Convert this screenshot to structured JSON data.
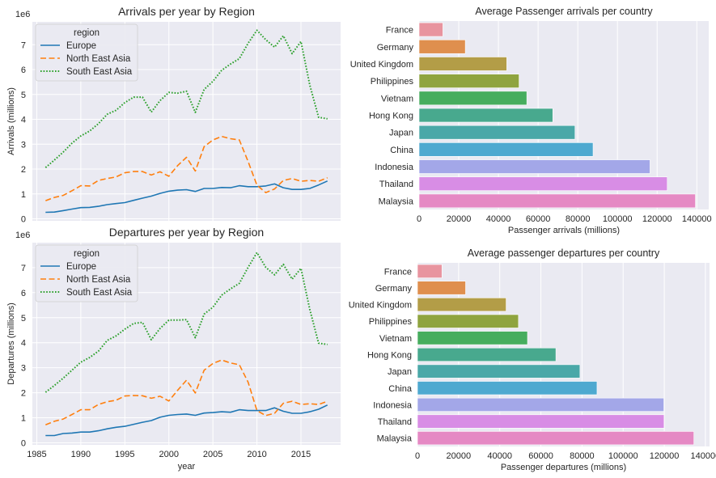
{
  "chart_data": [
    {
      "id": "arrivals-line",
      "type": "line",
      "title": "Arrivals per year by Region",
      "xlabel": "",
      "ylabel": "Arrivals (millions)",
      "offset_label": "1e6",
      "xlim": [
        1984.5,
        2019.5
      ],
      "ylim": [
        0,
        7.85
      ],
      "xticks": [
        1985,
        1990,
        1995,
        2000,
        2005,
        2010,
        2015
      ],
      "xtick_labels_visible": false,
      "yticks": [
        0,
        1,
        2,
        3,
        4,
        5,
        6,
        7
      ],
      "grid": true,
      "legend": {
        "title": "region",
        "placement": "top-left"
      },
      "x": [
        1986,
        1987,
        1988,
        1989,
        1990,
        1991,
        1992,
        1993,
        1994,
        1995,
        1996,
        1997,
        1998,
        1999,
        2000,
        2001,
        2002,
        2003,
        2004,
        2005,
        2006,
        2007,
        2008,
        2009,
        2010,
        2011,
        2012,
        2013,
        2014,
        2015,
        2016,
        2017,
        2018
      ],
      "series": [
        {
          "name": "Europe",
          "style": "solid",
          "color": "#1f77b4",
          "values": [
            0.26,
            0.27,
            0.33,
            0.39,
            0.45,
            0.46,
            0.5,
            0.57,
            0.61,
            0.65,
            0.74,
            0.83,
            0.91,
            1.02,
            1.11,
            1.15,
            1.17,
            1.1,
            1.22,
            1.22,
            1.26,
            1.25,
            1.33,
            1.29,
            1.29,
            1.32,
            1.4,
            1.25,
            1.18,
            1.18,
            1.22,
            1.36,
            1.52
          ]
        },
        {
          "name": "North East Asia",
          "style": "dashed",
          "color": "#ff7f0e",
          "values": [
            0.73,
            0.86,
            0.94,
            1.13,
            1.33,
            1.32,
            1.54,
            1.62,
            1.68,
            1.85,
            1.9,
            1.9,
            1.76,
            1.89,
            1.71,
            2.14,
            2.47,
            1.92,
            2.9,
            3.17,
            3.31,
            3.22,
            3.17,
            2.3,
            1.35,
            1.05,
            1.2,
            1.54,
            1.62,
            1.51,
            1.54,
            1.51,
            1.65
          ]
        },
        {
          "name": "South East Asia",
          "style": "dotted",
          "color": "#2ca02c",
          "values": [
            2.06,
            2.36,
            2.68,
            3.04,
            3.33,
            3.53,
            3.82,
            4.2,
            4.36,
            4.67,
            4.89,
            4.89,
            4.29,
            4.75,
            5.08,
            5.05,
            5.13,
            4.28,
            5.2,
            5.53,
            5.97,
            6.22,
            6.44,
            7.06,
            7.58,
            7.2,
            6.9,
            7.36,
            6.64,
            7.13,
            5.38,
            4.08,
            4.02
          ]
        }
      ]
    },
    {
      "id": "departures-line",
      "type": "line",
      "title": "Departures per year by Region",
      "xlabel": "year",
      "ylabel": "Departures (millions)",
      "offset_label": "1e6",
      "xlim": [
        1984.5,
        2019.5
      ],
      "ylim": [
        0,
        7.85
      ],
      "xticks": [
        1985,
        1990,
        1995,
        2000,
        2005,
        2010,
        2015
      ],
      "xtick_labels_visible": true,
      "yticks": [
        0,
        1,
        2,
        3,
        4,
        5,
        6,
        7
      ],
      "grid": true,
      "legend": {
        "title": "region",
        "placement": "top-left"
      },
      "x": [
        1986,
        1987,
        1988,
        1989,
        1990,
        1991,
        1992,
        1993,
        1994,
        1995,
        1996,
        1997,
        1998,
        1999,
        2000,
        2001,
        2002,
        2003,
        2004,
        2005,
        2006,
        2007,
        2008,
        2009,
        2010,
        2011,
        2012,
        2013,
        2014,
        2015,
        2016,
        2017,
        2018
      ],
      "series": [
        {
          "name": "Europe",
          "style": "solid",
          "color": "#1f77b4",
          "values": [
            0.29,
            0.29,
            0.37,
            0.39,
            0.43,
            0.43,
            0.48,
            0.56,
            0.62,
            0.66,
            0.74,
            0.82,
            0.89,
            1.02,
            1.1,
            1.13,
            1.15,
            1.1,
            1.19,
            1.21,
            1.24,
            1.22,
            1.32,
            1.29,
            1.29,
            1.29,
            1.4,
            1.26,
            1.18,
            1.18,
            1.24,
            1.34,
            1.51
          ]
        },
        {
          "name": "North East Asia",
          "style": "dashed",
          "color": "#ff7f0e",
          "values": [
            0.72,
            0.86,
            0.95,
            1.13,
            1.32,
            1.32,
            1.53,
            1.64,
            1.7,
            1.87,
            1.89,
            1.88,
            1.78,
            1.86,
            1.67,
            2.1,
            2.5,
            1.99,
            2.9,
            3.17,
            3.31,
            3.19,
            3.12,
            2.42,
            1.29,
            1.09,
            1.18,
            1.58,
            1.66,
            1.53,
            1.56,
            1.53,
            1.66
          ]
        },
        {
          "name": "South East Asia",
          "style": "dotted",
          "color": "#2ca02c",
          "values": [
            2.02,
            2.29,
            2.58,
            2.9,
            3.22,
            3.41,
            3.66,
            4.09,
            4.27,
            4.54,
            4.77,
            4.81,
            4.12,
            4.57,
            4.9,
            4.9,
            4.92,
            4.2,
            5.14,
            5.42,
            5.9,
            6.15,
            6.37,
            7.01,
            7.6,
            7.01,
            6.71,
            7.13,
            6.54,
            6.97,
            5.33,
            3.98,
            3.93
          ]
        }
      ]
    },
    {
      "id": "arrivals-bar",
      "type": "bar",
      "orientation": "horizontal",
      "title": "Average Passenger arrivals per country",
      "xlabel": "Passenger arrivals (millions)",
      "ylabel": "",
      "xlim": [
        0,
        146000
      ],
      "xticks": [
        0,
        20000,
        40000,
        60000,
        80000,
        100000,
        120000,
        140000
      ],
      "grid": true,
      "categories": [
        "France",
        "Germany",
        "United Kingdom",
        "Philippines",
        "Vietnam",
        "Hong Kong",
        "Japan",
        "China",
        "Indonesia",
        "Thailand",
        "Malaysia"
      ],
      "values": [
        12000,
        23300,
        44200,
        50400,
        54300,
        67400,
        78600,
        87700,
        116400,
        125100,
        139300
      ],
      "colors": [
        "#e8949f",
        "#df8f4e",
        "#b39d47",
        "#8fa43f",
        "#46ad5e",
        "#48a98e",
        "#4aa8a8",
        "#4ea9d0",
        "#a3a7e8",
        "#d88de5",
        "#e589c4"
      ]
    },
    {
      "id": "departures-bar",
      "type": "bar",
      "orientation": "horizontal",
      "title": "Average passenger departures per country",
      "xlabel": "Passenger departures (millions)",
      "ylabel": "",
      "xlim": [
        0,
        142000
      ],
      "xticks": [
        0,
        20000,
        40000,
        60000,
        80000,
        100000,
        120000,
        140000
      ],
      "grid": true,
      "categories": [
        "France",
        "Germany",
        "United Kingdom",
        "Philippines",
        "Vietnam",
        "Hong Kong",
        "Japan",
        "China",
        "Indonesia",
        "Thailand",
        "Malaysia"
      ],
      "values": [
        11900,
        23400,
        43100,
        49100,
        53500,
        67300,
        79000,
        87300,
        119800,
        119900,
        134400
      ],
      "colors": [
        "#e8949f",
        "#df8f4e",
        "#b39d47",
        "#8fa43f",
        "#46ad5e",
        "#48a98e",
        "#4aa8a8",
        "#4ea9d0",
        "#a3a7e8",
        "#d88de5",
        "#e589c4"
      ]
    }
  ]
}
